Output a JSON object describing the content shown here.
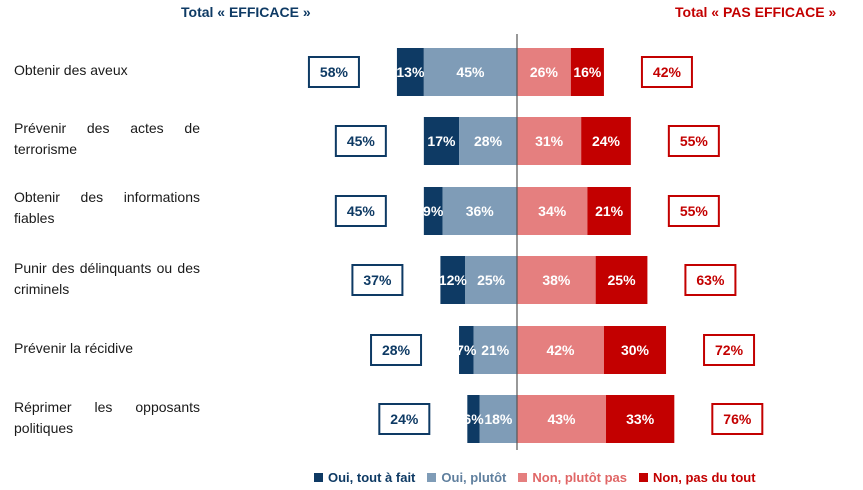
{
  "colors": {
    "effective": "#0e3a64",
    "not_effective": "#c30000",
    "series": [
      "#0e3a64",
      "#7f9cb7",
      "#e57f7f",
      "#c30000"
    ]
  },
  "header": {
    "left": "Total « EFFICACE »",
    "right": "Total « PAS EFFICACE »"
  },
  "chart_data": {
    "type": "bar",
    "orientation": "horizontal",
    "stacked": "diverging",
    "categories": [
      "Obtenir des aveux",
      "Prévenir des actes de terrorisme",
      "Obtenir des informations fiables",
      "Punir des délinquants ou des criminels",
      "Prévenir la récidive",
      "Réprimer les opposants politiques"
    ],
    "series": [
      {
        "name": "Oui, tout à fait",
        "values": [
          13,
          17,
          9,
          12,
          7,
          6
        ],
        "labels": [
          "13%",
          "17%",
          "9%",
          "12%",
          "7%",
          "6%"
        ]
      },
      {
        "name": "Oui, plutôt",
        "values": [
          45,
          28,
          36,
          25,
          21,
          18
        ],
        "labels": [
          "45%",
          "28%",
          "36%",
          "25%",
          "21%",
          "18%"
        ]
      },
      {
        "name": "Non, plutôt pas",
        "values": [
          26,
          31,
          34,
          38,
          42,
          43
        ],
        "labels": [
          "26%",
          "31%",
          "34%",
          "38%",
          "42%",
          "43%"
        ]
      },
      {
        "name": "Non, pas du tout",
        "values": [
          16,
          24,
          21,
          25,
          30,
          33
        ],
        "labels": [
          "16%",
          "24%",
          "21%",
          "25%",
          "30%",
          "33%"
        ]
      }
    ],
    "totals_effective": [
      58,
      45,
      45,
      37,
      28,
      24
    ],
    "totals_effective_labels": [
      "58%",
      "45%",
      "45%",
      "37%",
      "28%",
      "24%"
    ],
    "totals_not_effective": [
      42,
      55,
      55,
      63,
      72,
      76
    ],
    "totals_not_effective_labels": [
      "42%",
      "55%",
      "55%",
      "63%",
      "72%",
      "76%"
    ],
    "legend_position": "bottom",
    "grid": false
  }
}
